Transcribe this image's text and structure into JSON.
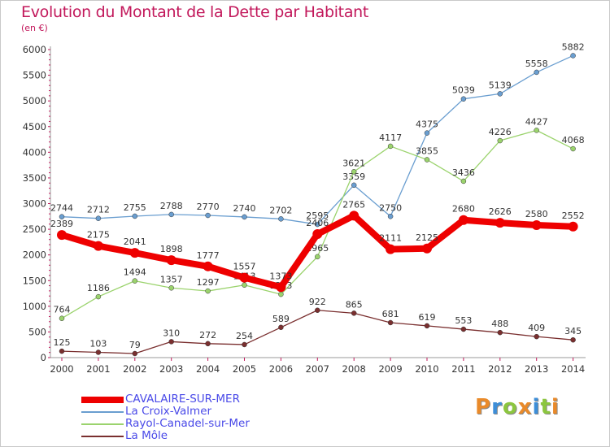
{
  "title": "Evolution du Montant de la Dette par Habitant",
  "subtitle": "(en €)",
  "logo": {
    "text": "Proxiti",
    "colors": [
      "#e98a2a",
      "#3d8ed8",
      "#8cc63f",
      "#e98a2a",
      "#3d8ed8",
      "#8cc63f",
      "#e98a2a"
    ]
  },
  "chart_data": {
    "type": "line",
    "title": "Evolution du Montant de la Dette par Habitant",
    "ylabel": "(en €)",
    "xlabel": "",
    "ylim": [
      0,
      6000
    ],
    "yticks": [
      "0",
      "500",
      "1000",
      "1500",
      "2000",
      "2500",
      "3000",
      "3500",
      "4000",
      "4500",
      "5000",
      "5500",
      "6000"
    ],
    "x": [
      "2000",
      "2001",
      "2002",
      "2003",
      "2004",
      "2005",
      "2006",
      "2007",
      "2008",
      "2009",
      "2010",
      "2011",
      "2012",
      "2013",
      "2014"
    ],
    "grid": false,
    "legend_position": "bottom-left",
    "series": [
      {
        "name": "La Croix-Valmer",
        "color": "#6a9ed0",
        "values": [
          2744,
          2712,
          2755,
          2788,
          2770,
          2740,
          2702,
          2595,
          3359,
          2750,
          4375,
          5039,
          5139,
          5558,
          5882
        ]
      },
      {
        "name": "Rayol-Canadel-sur-Mer",
        "color": "#9bd36d",
        "values": [
          764,
          1186,
          1494,
          1357,
          1297,
          1413,
          1233,
          1965,
          3621,
          4117,
          3855,
          3436,
          4226,
          4427,
          4068
        ]
      },
      {
        "name": "La Môle",
        "color": "#7a2f2f",
        "values": [
          125,
          103,
          79,
          310,
          272,
          254,
          589,
          922,
          865,
          681,
          619,
          553,
          488,
          409,
          345
        ]
      },
      {
        "name": "CAVALAIRE-SUR-MER",
        "color": "#ee0000",
        "values": [
          2389,
          2175,
          2041,
          1898,
          1777,
          1557,
          1373,
          2406,
          2765,
          2111,
          2125,
          2680,
          2626,
          2580,
          2552
        ]
      }
    ]
  },
  "legend": [
    {
      "label": "CAVALAIRE-SUR-MER",
      "color": "#ee0000"
    },
    {
      "label": "La Croix-Valmer",
      "color": "#6a9ed0"
    },
    {
      "label": "Rayol-Canadel-sur-Mer",
      "color": "#9bd36d"
    },
    {
      "label": "La Môle",
      "color": "#7a2f2f"
    }
  ]
}
